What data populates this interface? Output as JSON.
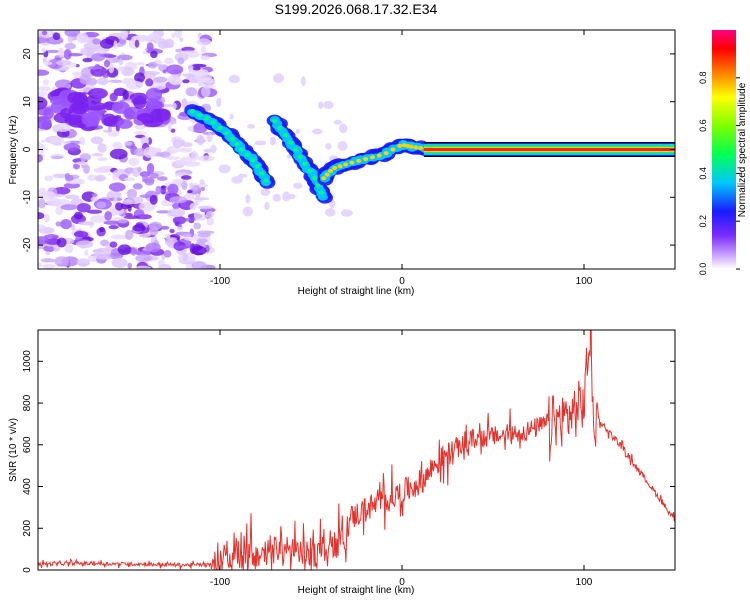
{
  "figure_title": "S199.2026.068.17.32.E34",
  "chart_data": [
    {
      "type": "heatmap",
      "title": "S199.2026.068.17.32.E34",
      "xlabel": "Height of straight line (km)",
      "ylabel": "Frequency (Hz)",
      "xlim": [
        -200,
        150
      ],
      "ylim": [
        -25,
        25
      ],
      "xticks": [
        -100,
        0,
        100
      ],
      "xtick_labels": [
        "-100",
        "0",
        "100"
      ],
      "yticks": [
        -20,
        -10,
        0,
        10,
        20
      ],
      "ytick_labels": [
        "-20",
        "-10",
        "0",
        "10",
        "20"
      ],
      "colorbar": {
        "label": "Normalized spectral amplitude",
        "range": [
          0,
          1
        ],
        "ticks": [
          0.0,
          0.2,
          0.4,
          0.6,
          0.8
        ],
        "tick_labels": [
          "0.0",
          "0.2",
          "0.4",
          "0.6",
          "0.8"
        ]
      },
      "ridge": {
        "segments": [
          {
            "x": [
              -115,
              -105,
              -95,
              -88,
              -80,
              -74
            ],
            "y": [
              8,
              6,
              3,
              0,
              -3,
              -7
            ]
          },
          {
            "x": [
              -70,
              -62,
              -55,
              -48,
              -43
            ],
            "y": [
              6,
              2,
              -2,
              -6,
              -10
            ]
          },
          {
            "x": [
              -43,
              -38,
              -30,
              -20,
              -10,
              0,
              5,
              12,
              20
            ],
            "y": [
              -6,
              -4,
              -3,
              -2,
              -1,
              1,
              0.6,
              0.2,
              0
            ]
          },
          {
            "x": [
              12,
              150
            ],
            "y": [
              0,
              0
            ]
          }
        ]
      }
    },
    {
      "type": "line",
      "xlabel": "Height of straight line (km)",
      "ylabel": "SNR (10 * v/v)",
      "xlim": [
        -200,
        150
      ],
      "ylim": [
        0,
        1150
      ],
      "xticks": [
        -100,
        0,
        100
      ],
      "xtick_labels": [
        "-100",
        "0",
        "100"
      ],
      "yticks": [
        0,
        200,
        400,
        600,
        800,
        1000
      ],
      "ytick_labels": [
        "0",
        "200",
        "400",
        "600",
        "800",
        "1000"
      ],
      "series": [
        {
          "name": "SNR",
          "color": "#e8302b",
          "x": [
            -200,
            -180,
            -160,
            -140,
            -120,
            -105,
            -95,
            -85,
            -75,
            -65,
            -55,
            -45,
            -35,
            -28,
            -20,
            -10,
            0,
            10,
            20,
            30,
            40,
            50,
            60,
            70,
            80,
            90,
            95,
            100,
            103,
            105,
            110,
            120,
            130,
            140,
            150
          ],
          "y": [
            28,
            32,
            30,
            28,
            24,
            26,
            45,
            60,
            80,
            95,
            70,
            95,
            120,
            250,
            290,
            330,
            370,
            420,
            520,
            580,
            630,
            640,
            650,
            670,
            700,
            730,
            760,
            800,
            1130,
            750,
            700,
            600,
            480,
            360,
            240
          ]
        }
      ]
    }
  ]
}
